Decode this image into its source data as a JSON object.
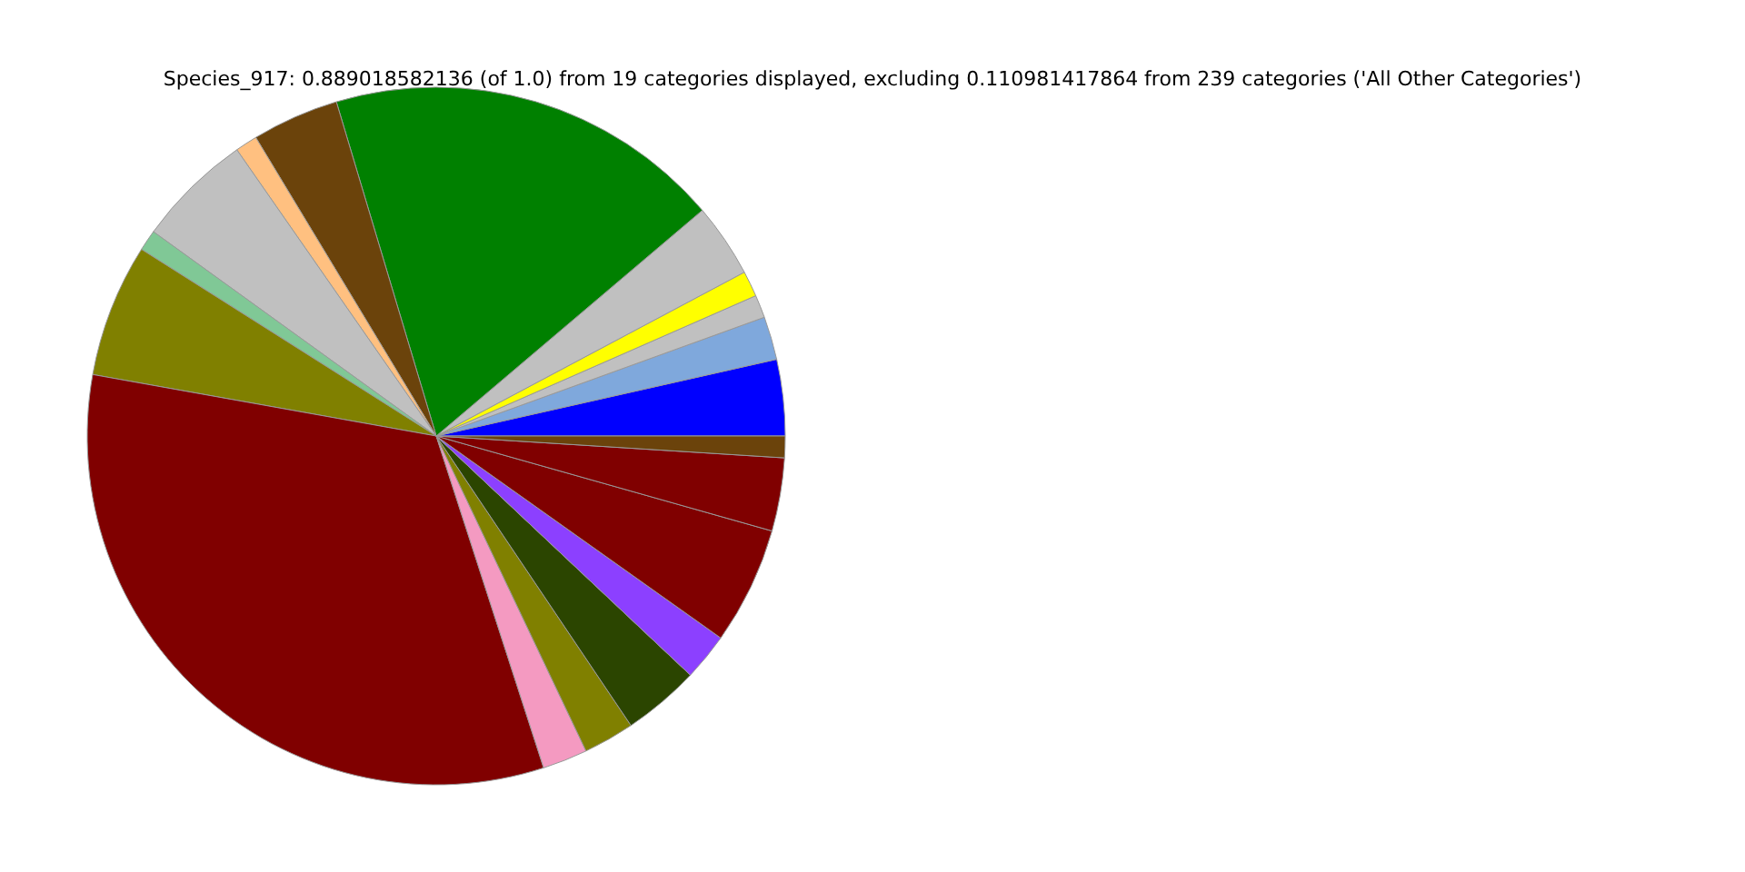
{
  "chart_data": {
    "type": "pie",
    "title": "Species_917: 0.889018582136 (of 1.0) from 19 categories displayed, excluding 0.110981417864 from 239 categories ('All Other Categories')",
    "categories": [
      null,
      null,
      null,
      null,
      null,
      null,
      null,
      null,
      null,
      null,
      null,
      null,
      null,
      null,
      null,
      null,
      null,
      null,
      null
    ],
    "values": [
      3.53,
      2.0,
      1.06,
      1.19,
      3.42,
      18.42,
      4.03,
      1.03,
      5.36,
      0.97,
      6.17,
      32.8,
      2.08,
      2.36,
      3.56,
      2.19,
      5.44,
      3.39,
      1.0
    ],
    "colors": [
      "#0000ff",
      "#7fa8dc",
      "#c0c0c0",
      "#ffff00",
      "#c0c0c0",
      "#008000",
      "#6b430b",
      "#ffc080",
      "#c0c0c0",
      "#80c896",
      "#808000",
      "#800000",
      "#f49ac1",
      "#808000",
      "#2b4500",
      "#8c40ff",
      "#800000",
      "#800000",
      "#6b430b"
    ]
  }
}
